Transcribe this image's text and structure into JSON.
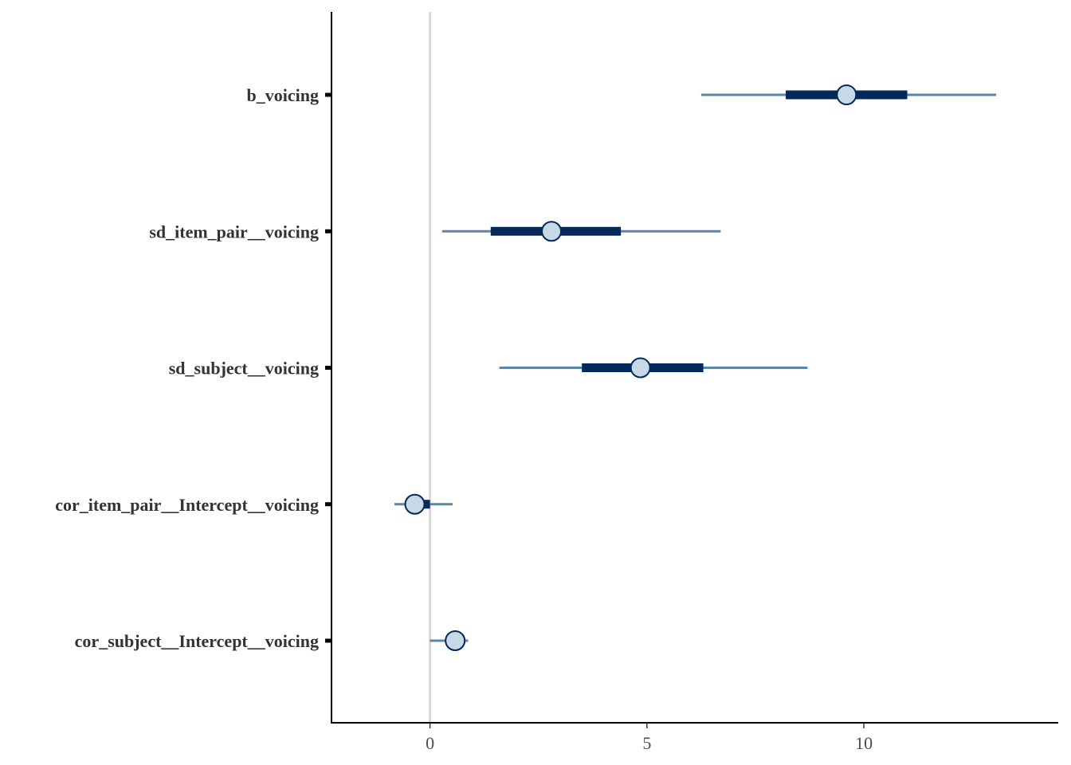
{
  "chart_data": {
    "type": "interval",
    "parameters": [
      {
        "label": "b_voicing",
        "estimate": 9.6,
        "inner": [
          8.2,
          11.0
        ],
        "outer": [
          6.25,
          13.05
        ]
      },
      {
        "label": "sd_item_pair__voicing",
        "estimate": 2.8,
        "inner": [
          1.4,
          4.4
        ],
        "outer": [
          0.28,
          6.7
        ]
      },
      {
        "label": "sd_subject__voicing",
        "estimate": 4.85,
        "inner": [
          3.5,
          6.3
        ],
        "outer": [
          1.6,
          8.7
        ]
      },
      {
        "label": "cor_item_pair__Intercept__voicing",
        "estimate": -0.35,
        "inner": [
          -0.55,
          0.0
        ],
        "outer": [
          -0.82,
          0.52
        ]
      },
      {
        "label": "cor_subject__Intercept__voicing",
        "estimate": 0.58,
        "inner": [
          0.45,
          0.7
        ],
        "outer": [
          0.0,
          0.88
        ]
      }
    ],
    "x_ticks": [
      0,
      5,
      10
    ],
    "xlim": [
      -2.27,
      14.48
    ],
    "reference_line": 0,
    "grid": false,
    "colors": {
      "outer_line": "#5c86a6",
      "inner_line": "#03295b",
      "point_fill": "#c7d9e6",
      "point_stroke": "#03295b",
      "reference": "#d9d9d9",
      "axis": "#000000"
    }
  }
}
